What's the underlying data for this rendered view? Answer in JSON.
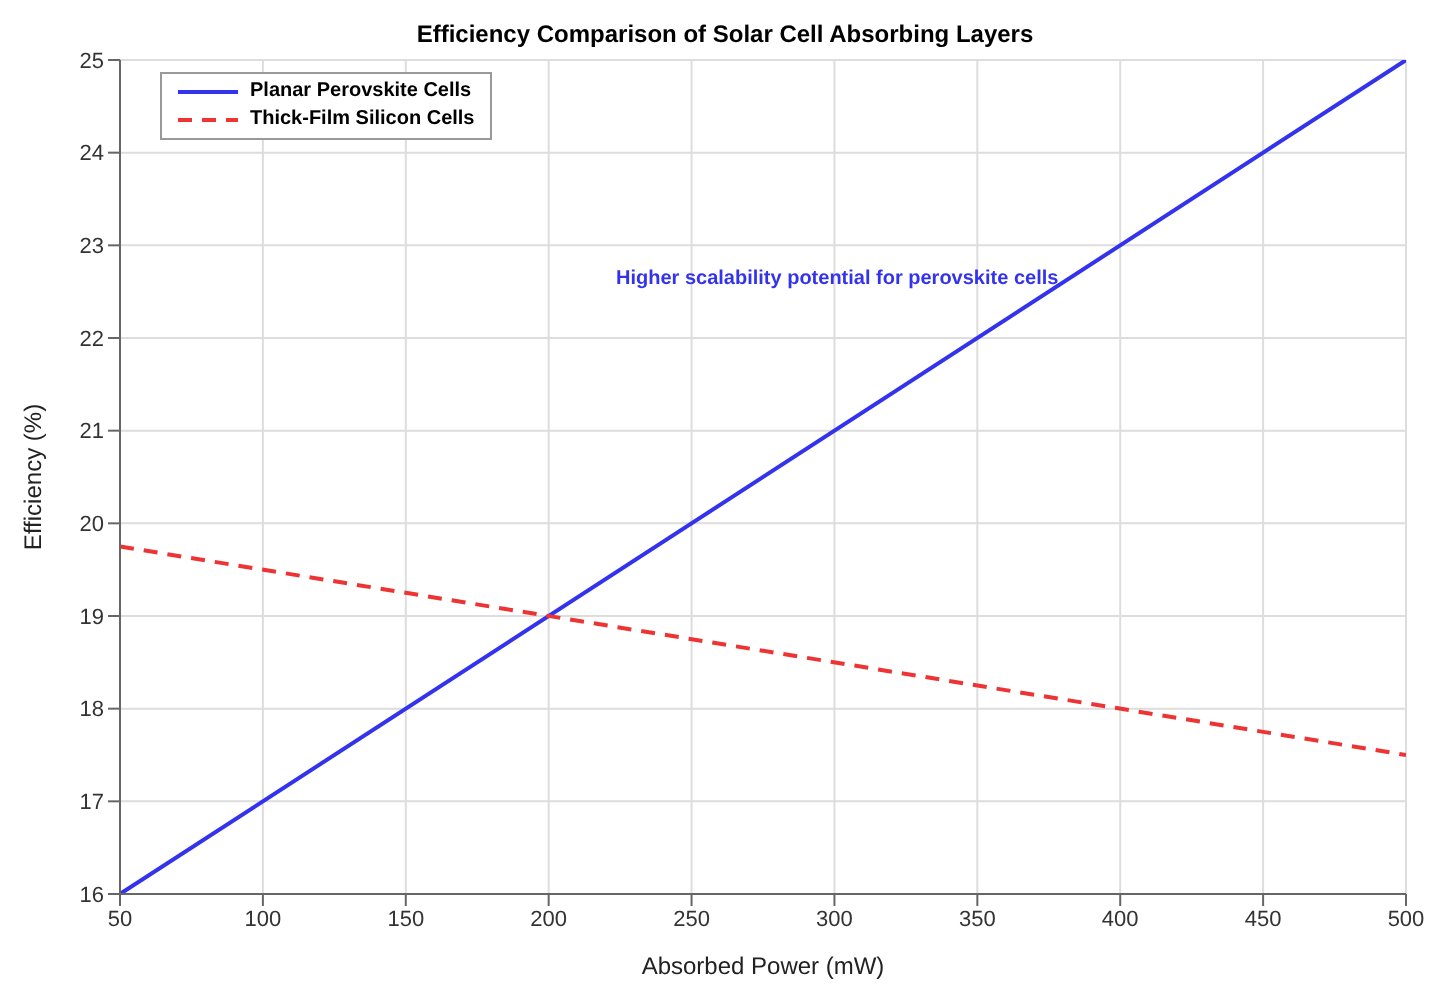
{
  "chart_data": {
    "type": "line",
    "title": "Efficiency Comparison of Solar Cell Absorbing Layers",
    "xlabel": "Absorbed Power (mW)",
    "ylabel": "Efficiency (%)",
    "x": [
      50,
      500
    ],
    "series": [
      {
        "name": "Planar Perovskite Cells",
        "color": "#3333ee",
        "values": [
          16,
          25
        ],
        "line_style": "solid"
      },
      {
        "name": "Thick-Film Silicon Cells",
        "color": "#ee3333",
        "values": [
          19.75,
          17.5
        ],
        "line_style": "dashed"
      }
    ],
    "xlim": [
      50,
      500
    ],
    "xticks": [
      50,
      100,
      150,
      200,
      250,
      300,
      350,
      400,
      450,
      500
    ],
    "ylim": [
      16,
      25
    ],
    "yticks": [
      16,
      17,
      18,
      19,
      20,
      21,
      22,
      23,
      24,
      25
    ],
    "grid": true,
    "legend": "top left",
    "marker": "none",
    "annotations": [
      "Higher scalability potential for perovskite cells"
    ]
  }
}
